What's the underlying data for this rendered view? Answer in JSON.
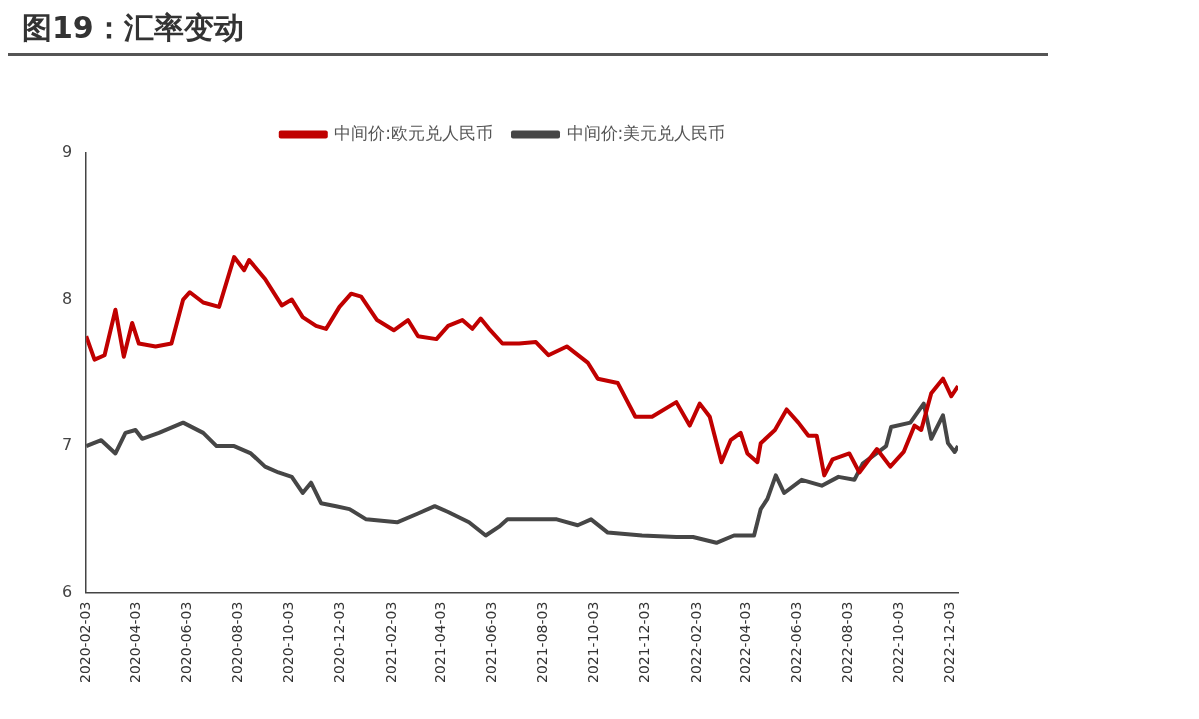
{
  "chart_data": {
    "type": "line",
    "title": "图19：汇率变动",
    "legend": "top",
    "grid": false,
    "ylim": [
      6,
      9
    ],
    "yticks": [
      6,
      7,
      8,
      9
    ],
    "xlim": [
      "2020-02-03",
      "2022-12-12"
    ],
    "xticks": [
      "2020-02-03",
      "2020-04-03",
      "2020-06-03",
      "2020-08-03",
      "2020-10-03",
      "2020-12-03",
      "2021-02-03",
      "2021-04-03",
      "2021-06-03",
      "2021-08-03",
      "2021-10-03",
      "2021-12-03",
      "2022-02-03",
      "2022-04-03",
      "2022-06-03",
      "2022-08-03",
      "2022-10-03",
      "2022-12-03"
    ],
    "series": [
      {
        "name": "中间价:欧元兑人民币",
        "color": "#c00000",
        "x": [
          "2020-02-03",
          "2020-02-13",
          "2020-02-25",
          "2020-03-09",
          "2020-03-19",
          "2020-03-29",
          "2020-04-06",
          "2020-04-26",
          "2020-05-15",
          "2020-05-29",
          "2020-06-06",
          "2020-06-22",
          "2020-07-11",
          "2020-07-29",
          "2020-08-10",
          "2020-08-16",
          "2020-09-04",
          "2020-09-24",
          "2020-10-06",
          "2020-10-19",
          "2020-11-04",
          "2020-11-16",
          "2020-12-02",
          "2020-12-16",
          "2020-12-28",
          "2021-01-16",
          "2021-02-05",
          "2021-02-22",
          "2021-03-06",
          "2021-03-28",
          "2021-04-11",
          "2021-04-28",
          "2021-05-10",
          "2021-05-20",
          "2021-05-30",
          "2021-06-15",
          "2021-07-05",
          "2021-07-25",
          "2021-08-09",
          "2021-08-31",
          "2021-09-25",
          "2021-10-07",
          "2021-10-31",
          "2021-11-21",
          "2021-12-11",
          "2022-01-09",
          "2022-01-25",
          "2022-02-06",
          "2022-02-18",
          "2022-03-04",
          "2022-03-15",
          "2022-03-27",
          "2022-04-04",
          "2022-04-16",
          "2022-04-20",
          "2022-05-07",
          "2022-05-21",
          "2022-06-04",
          "2022-06-16",
          "2022-06-26",
          "2022-07-05",
          "2022-07-15",
          "2022-08-04",
          "2022-08-16",
          "2022-09-06",
          "2022-09-22",
          "2022-10-08",
          "2022-10-21",
          "2022-10-29",
          "2022-11-10",
          "2022-11-24",
          "2022-12-04",
          "2022-12-12"
        ],
        "values": [
          7.75,
          7.59,
          7.62,
          7.93,
          7.61,
          7.84,
          7.7,
          7.68,
          7.7,
          8.0,
          8.05,
          7.98,
          7.95,
          8.29,
          8.2,
          8.27,
          8.14,
          7.96,
          8.0,
          7.88,
          7.82,
          7.8,
          7.95,
          8.04,
          8.02,
          7.86,
          7.79,
          7.86,
          7.75,
          7.73,
          7.82,
          7.86,
          7.8,
          7.87,
          7.8,
          7.7,
          7.7,
          7.71,
          7.62,
          7.68,
          7.57,
          7.46,
          7.43,
          7.2,
          7.2,
          7.3,
          7.14,
          7.29,
          7.2,
          6.89,
          7.04,
          7.09,
          6.95,
          6.89,
          7.02,
          7.11,
          7.25,
          7.16,
          7.07,
          7.07,
          6.8,
          6.91,
          6.95,
          6.82,
          6.98,
          6.86,
          6.96,
          7.14,
          7.11,
          7.36,
          7.46,
          7.34,
          7.41
        ]
      },
      {
        "name": "中间价:美元兑人民币",
        "color": "#464646",
        "x": [
          "2020-02-03",
          "2020-02-21",
          "2020-03-09",
          "2020-03-21",
          "2020-04-02",
          "2020-04-10",
          "2020-04-30",
          "2020-05-29",
          "2020-06-22",
          "2020-07-08",
          "2020-07-29",
          "2020-08-18",
          "2020-09-04",
          "2020-09-20",
          "2020-10-06",
          "2020-10-19",
          "2020-10-29",
          "2020-11-10",
          "2020-11-28",
          "2020-12-14",
          "2021-01-03",
          "2021-02-09",
          "2021-03-06",
          "2021-03-26",
          "2021-04-11",
          "2021-05-06",
          "2021-05-26",
          "2021-06-11",
          "2021-06-21",
          "2021-07-30",
          "2021-08-19",
          "2021-09-13",
          "2021-09-29",
          "2021-10-19",
          "2021-11-29",
          "2022-01-09",
          "2022-01-29",
          "2022-02-26",
          "2022-03-19",
          "2022-04-12",
          "2022-04-20",
          "2022-04-28",
          "2022-05-08",
          "2022-05-18",
          "2022-06-08",
          "2022-07-02",
          "2022-07-22",
          "2022-08-10",
          "2022-08-20",
          "2022-09-17",
          "2022-09-23",
          "2022-10-16",
          "2022-11-01",
          "2022-11-10",
          "2022-11-24",
          "2022-11-30",
          "2022-12-08",
          "2022-12-12"
        ],
        "values": [
          7.0,
          7.04,
          6.95,
          7.09,
          7.11,
          7.05,
          7.09,
          7.16,
          7.09,
          7.0,
          7.0,
          6.95,
          6.86,
          6.82,
          6.79,
          6.68,
          6.75,
          6.61,
          6.59,
          6.57,
          6.5,
          6.48,
          6.54,
          6.59,
          6.55,
          6.48,
          6.39,
          6.45,
          6.5,
          6.5,
          6.5,
          6.46,
          6.5,
          6.41,
          6.39,
          6.38,
          6.38,
          6.34,
          6.39,
          6.39,
          6.57,
          6.64,
          6.8,
          6.68,
          6.77,
          6.73,
          6.79,
          6.77,
          6.88,
          7.0,
          7.13,
          7.16,
          7.29,
          7.05,
          7.21,
          7.02,
          6.96,
          7.0
        ]
      }
    ]
  }
}
